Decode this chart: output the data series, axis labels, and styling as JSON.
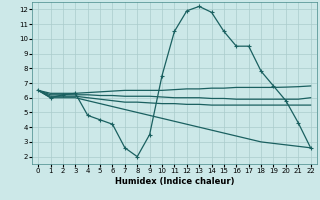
{
  "xlabel": "Humidex (Indice chaleur)",
  "xlim": [
    -0.5,
    22.5
  ],
  "ylim": [
    1.5,
    12.5
  ],
  "xticks": [
    0,
    1,
    2,
    3,
    4,
    5,
    6,
    7,
    8,
    9,
    10,
    11,
    12,
    13,
    14,
    15,
    16,
    17,
    18,
    19,
    20,
    21,
    22
  ],
  "yticks": [
    2,
    3,
    4,
    5,
    6,
    7,
    8,
    9,
    10,
    11,
    12
  ],
  "background_color": "#cce8e8",
  "grid_color": "#aacccc",
  "line_color": "#1a6060",
  "line_width": 0.9,
  "marker": "+",
  "marker_size": 3,
  "marker_edge_width": 0.8,
  "lines": [
    {
      "x": [
        0,
        1,
        2,
        3,
        4,
        5,
        6,
        7,
        8,
        9,
        10,
        11,
        12,
        13,
        14,
        15,
        16,
        17,
        18,
        19,
        20,
        21,
        22
      ],
      "y": [
        6.5,
        6.0,
        6.2,
        6.3,
        4.8,
        4.5,
        4.2,
        2.6,
        2.0,
        3.5,
        7.5,
        10.5,
        11.9,
        12.2,
        11.8,
        10.5,
        9.5,
        9.5,
        7.8,
        6.8,
        5.8,
        4.3,
        2.6
      ],
      "markers": true
    },
    {
      "x": [
        0,
        1,
        2,
        3,
        4,
        5,
        6,
        7,
        8,
        9,
        10,
        11,
        12,
        13,
        14,
        15,
        16,
        17,
        18,
        19,
        20,
        21,
        22
      ],
      "y": [
        6.5,
        6.3,
        6.3,
        6.3,
        6.35,
        6.4,
        6.45,
        6.5,
        6.5,
        6.5,
        6.5,
        6.55,
        6.6,
        6.6,
        6.65,
        6.65,
        6.7,
        6.7,
        6.7,
        6.7,
        6.72,
        6.75,
        6.8
      ],
      "markers": false
    },
    {
      "x": [
        0,
        1,
        2,
        3,
        4,
        5,
        6,
        7,
        8,
        9,
        10,
        11,
        12,
        13,
        14,
        15,
        16,
        17,
        18,
        19,
        20,
        21,
        22
      ],
      "y": [
        6.5,
        6.2,
        6.2,
        6.2,
        6.2,
        6.15,
        6.15,
        6.1,
        6.1,
        6.1,
        6.05,
        6.0,
        6.0,
        6.0,
        5.95,
        5.95,
        5.9,
        5.9,
        5.9,
        5.9,
        5.9,
        5.9,
        6.0
      ],
      "markers": false
    },
    {
      "x": [
        0,
        1,
        2,
        3,
        4,
        5,
        6,
        7,
        8,
        9,
        10,
        11,
        12,
        13,
        14,
        15,
        16,
        17,
        18,
        19,
        20,
        21,
        22
      ],
      "y": [
        6.5,
        6.1,
        6.1,
        6.1,
        6.0,
        5.9,
        5.8,
        5.7,
        5.7,
        5.65,
        5.6,
        5.6,
        5.55,
        5.55,
        5.5,
        5.5,
        5.5,
        5.5,
        5.5,
        5.5,
        5.5,
        5.5,
        5.5
      ],
      "markers": false
    },
    {
      "x": [
        0,
        1,
        2,
        3,
        4,
        5,
        6,
        7,
        8,
        9,
        10,
        11,
        12,
        13,
        14,
        15,
        16,
        17,
        18,
        19,
        20,
        21,
        22
      ],
      "y": [
        6.5,
        6.0,
        6.0,
        6.0,
        5.8,
        5.6,
        5.4,
        5.2,
        5.0,
        4.8,
        4.6,
        4.4,
        4.2,
        4.0,
        3.8,
        3.6,
        3.4,
        3.2,
        3.0,
        2.9,
        2.8,
        2.7,
        2.6
      ],
      "markers": false
    }
  ]
}
